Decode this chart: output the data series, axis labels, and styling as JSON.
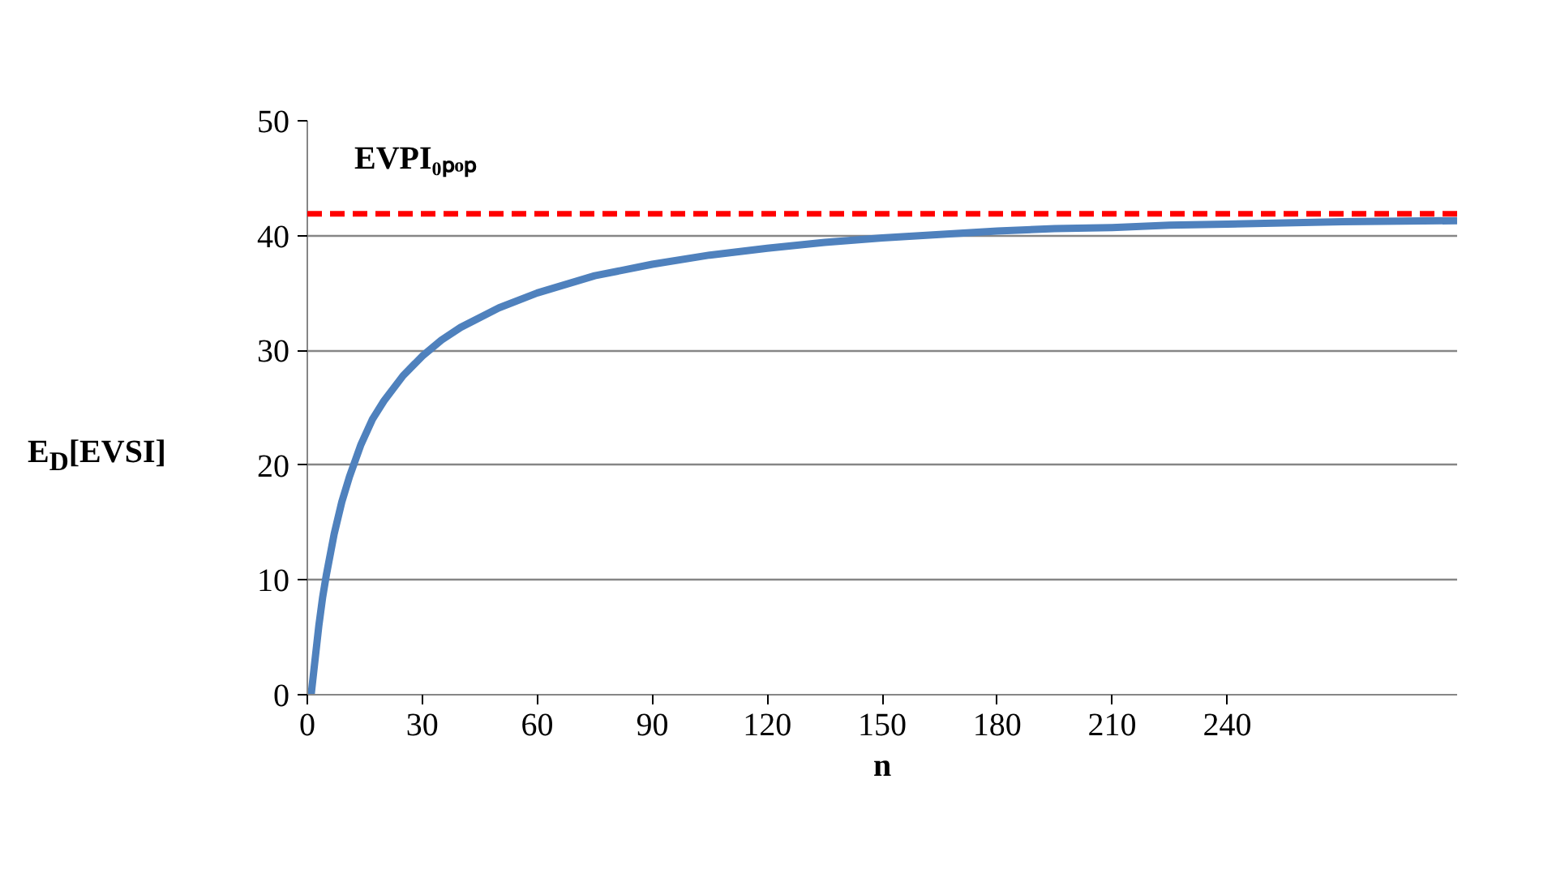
{
  "chart_data": {
    "type": "line",
    "xlabel": "n",
    "ylabel": "E$_{D}$[EVSI]",
    "x": [
      1,
      2,
      3,
      4,
      5,
      7,
      9,
      11,
      14,
      17,
      20,
      25,
      30,
      35,
      40,
      50,
      60,
      75,
      90,
      105,
      120,
      135,
      150,
      165,
      180,
      195,
      210,
      225,
      240,
      270,
      300
    ],
    "series": [
      {
        "color": "#4f81bd",
        "values": [
          0,
          3,
          6,
          8.5,
          10.5,
          14,
          16.8,
          19,
          21.8,
          24,
          25.6,
          27.8,
          29.5,
          30.9,
          32,
          33.7,
          35,
          36.5,
          37.5,
          38.3,
          38.9,
          39.4,
          39.8,
          40.1,
          40.4,
          40.6,
          40.7,
          40.9,
          41,
          41.2,
          41.3
        ]
      }
    ],
    "xlim": [
      0,
      300
    ],
    "xticks": [
      0,
      30,
      60,
      90,
      120,
      150,
      180,
      210,
      240
    ],
    "ylim": [
      0,
      50
    ],
    "yticks": [
      0,
      10,
      20,
      30,
      40,
      50
    ],
    "ref_lines": [
      {
        "axis": "y",
        "value": 41.9,
        "label": "EVPI₀ₚₒₚ",
        "color": "#ff0000",
        "line_style": "dashed"
      }
    ],
    "grid": "y",
    "marker": "none",
    "line_style": "solid"
  }
}
